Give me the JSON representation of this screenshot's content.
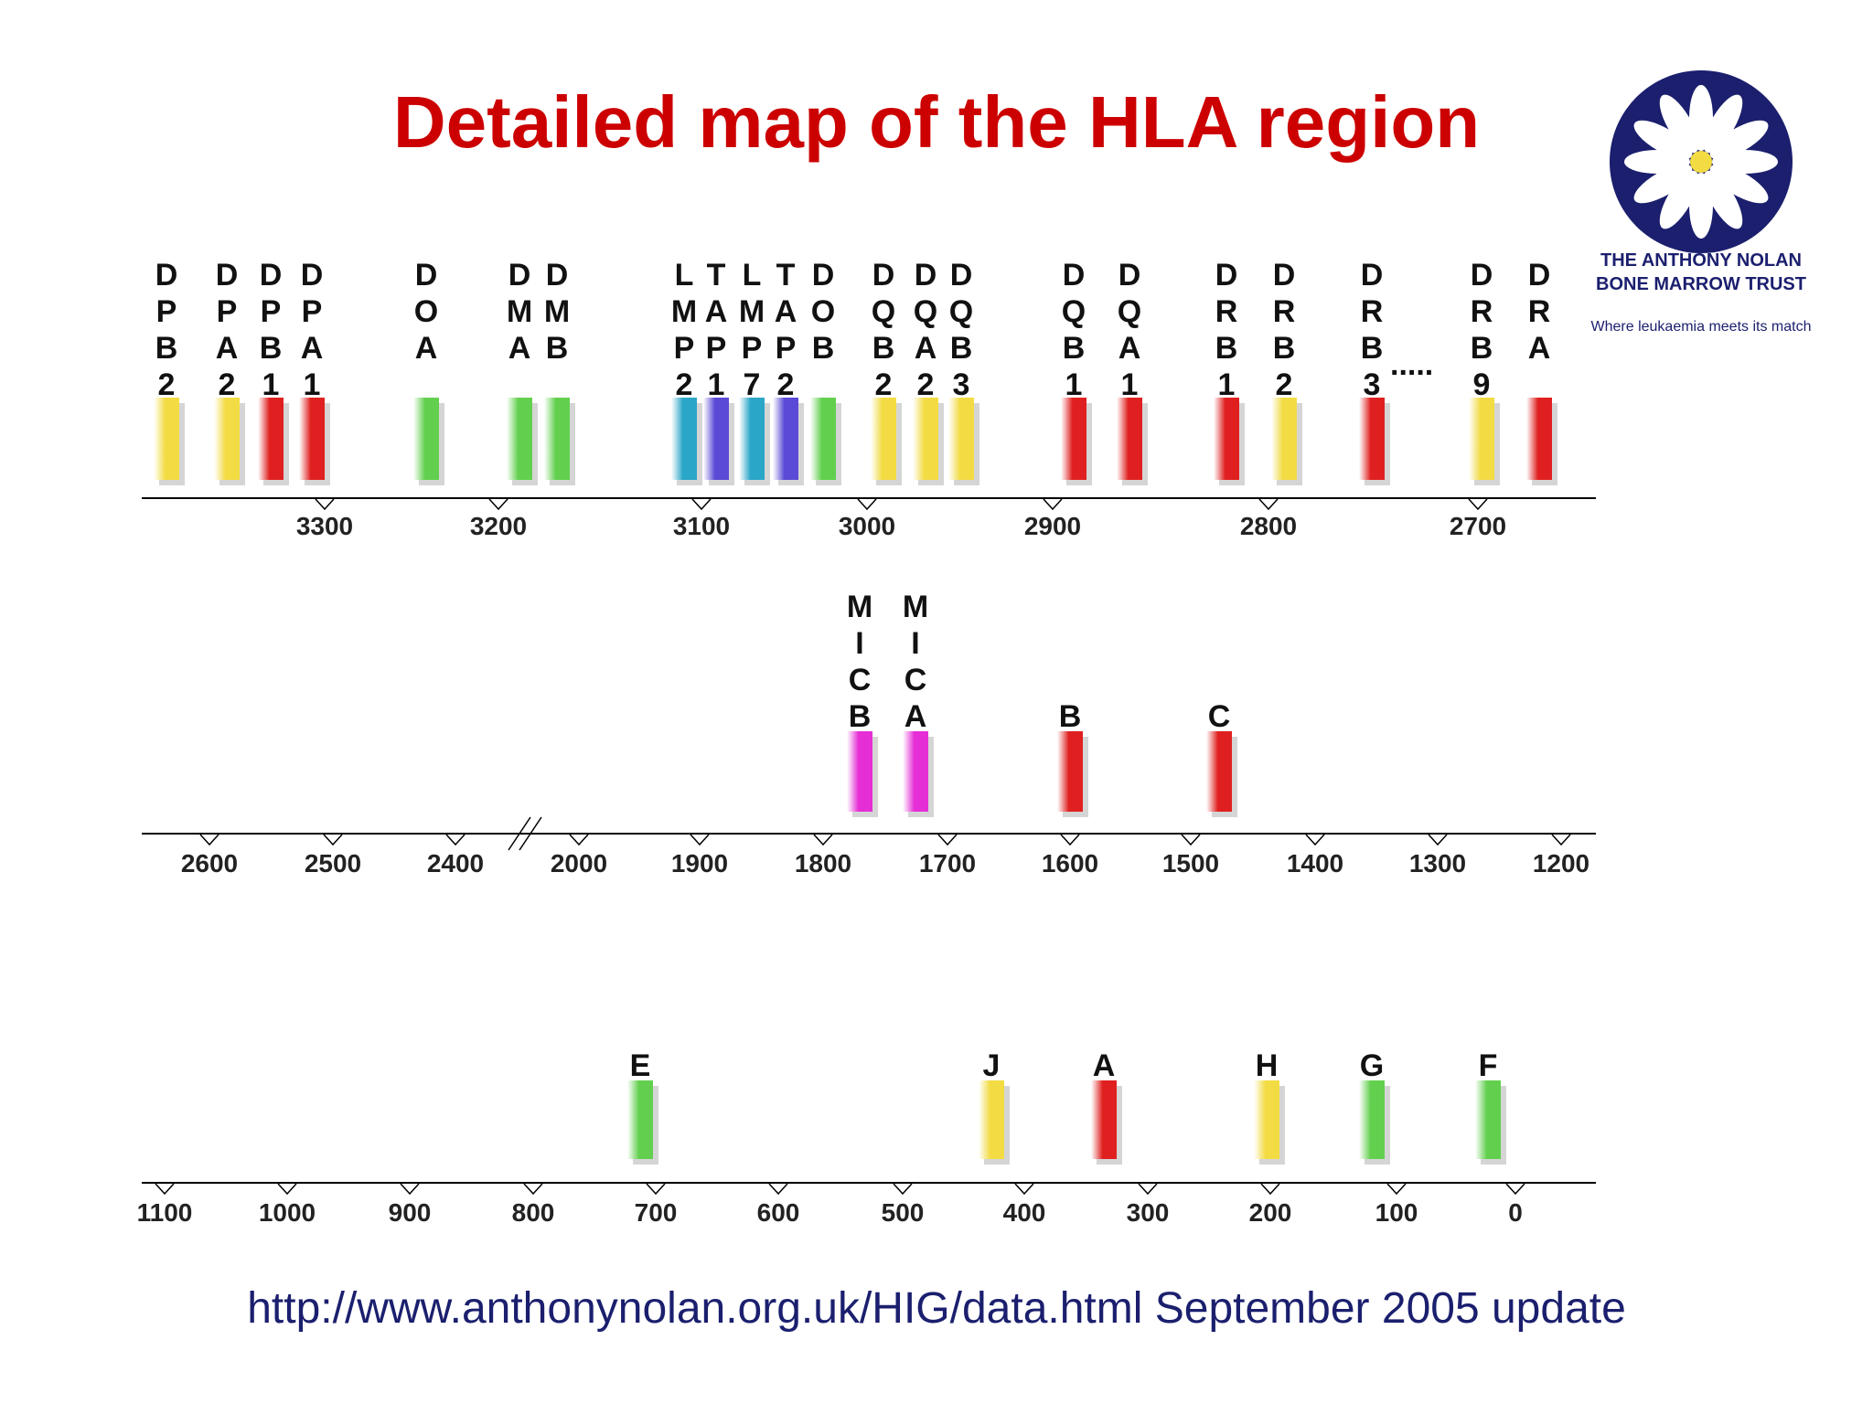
{
  "title": "Detailed map of the HLA region",
  "logo": {
    "line1": "THE ANTHONY NOLAN",
    "line2": "BONE MARROW TRUST",
    "tagline": "Where leukaemia meets its match",
    "name": "daisy-icon"
  },
  "footer": "http://www.anthonynolan.org.uk/HIG/data.html September 2005 update",
  "colors": {
    "title": "#cc0000",
    "logo_blue": "#1b1f6e",
    "footer": "#1b1f6e",
    "yellow": "#f3dc43",
    "red": "#e02020",
    "green": "#62d04e",
    "teal": "#2aa6c8",
    "purple": "#5a4ad6",
    "magenta": "#e62ed6"
  },
  "rows": [
    {
      "ticks": [
        "3300",
        "3200",
        "3100",
        "3000",
        "2900",
        "2800",
        "2700"
      ],
      "genes": [
        {
          "label": [
            "D",
            "P",
            "B",
            "2"
          ],
          "color": "yellow"
        },
        {
          "label": [
            "D",
            "P",
            "A",
            "2"
          ],
          "color": "yellow"
        },
        {
          "label": [
            "D",
            "P",
            "B",
            "1"
          ],
          "color": "red"
        },
        {
          "label": [
            "D",
            "P",
            "A",
            "1"
          ],
          "color": "red"
        },
        {
          "label": [
            "D",
            "O",
            "A"
          ],
          "color": "green"
        },
        {
          "label": [
            "D",
            "M",
            "A"
          ],
          "color": "green"
        },
        {
          "label": [
            "D",
            "M",
            "B"
          ],
          "color": "green"
        },
        {
          "label": [
            "L",
            "M",
            "P",
            "2"
          ],
          "color": "teal"
        },
        {
          "label": [
            "T",
            "A",
            "P",
            "1"
          ],
          "color": "purple"
        },
        {
          "label": [
            "L",
            "M",
            "P",
            "7"
          ],
          "color": "teal"
        },
        {
          "label": [
            "T",
            "A",
            "P",
            "2"
          ],
          "color": "purple"
        },
        {
          "label": [
            "D",
            "O",
            "B"
          ],
          "color": "green"
        },
        {
          "label": [
            "D",
            "Q",
            "B",
            "2"
          ],
          "color": "yellow"
        },
        {
          "label": [
            "D",
            "Q",
            "A",
            "2"
          ],
          "color": "yellow"
        },
        {
          "label": [
            "D",
            "Q",
            "B",
            "3"
          ],
          "color": "yellow"
        },
        {
          "label": [
            "D",
            "Q",
            "B",
            "1"
          ],
          "color": "red"
        },
        {
          "label": [
            "D",
            "Q",
            "A",
            "1"
          ],
          "color": "red"
        },
        {
          "label": [
            "D",
            "R",
            "B",
            "1"
          ],
          "color": "red"
        },
        {
          "label": [
            "D",
            "R",
            "B",
            "2"
          ],
          "color": "yellow"
        },
        {
          "label": [
            "D",
            "R",
            "B",
            "3"
          ],
          "color": "red"
        },
        {
          "label": [
            "D",
            "R",
            "B",
            "9"
          ],
          "color": "yellow"
        },
        {
          "label": [
            "D",
            "R",
            "A"
          ],
          "color": "red"
        }
      ],
      "ellipsis": "....."
    },
    {
      "ticks": [
        "2600",
        "2500",
        "2400",
        "2000",
        "1900",
        "1800",
        "1700",
        "1600",
        "1500",
        "1400",
        "1300",
        "1200"
      ],
      "genes": [
        {
          "label": [
            "M",
            "I",
            "C",
            "B"
          ],
          "color": "magenta"
        },
        {
          "label": [
            "M",
            "I",
            "C",
            "A"
          ],
          "color": "magenta"
        },
        {
          "label": [
            "B"
          ],
          "color": "red"
        },
        {
          "label": [
            "C"
          ],
          "color": "red"
        }
      ]
    },
    {
      "ticks": [
        "1100",
        "1000",
        "900",
        "800",
        "700",
        "600",
        "500",
        "400",
        "300",
        "200",
        "100",
        "0"
      ],
      "genes": [
        {
          "label": [
            "E"
          ],
          "color": "green"
        },
        {
          "label": [
            "J"
          ],
          "color": "yellow"
        },
        {
          "label": [
            "A"
          ],
          "color": "red"
        },
        {
          "label": [
            "H"
          ],
          "color": "yellow"
        },
        {
          "label": [
            "G"
          ],
          "color": "green"
        },
        {
          "label": [
            "F"
          ],
          "color": "green"
        }
      ]
    }
  ]
}
